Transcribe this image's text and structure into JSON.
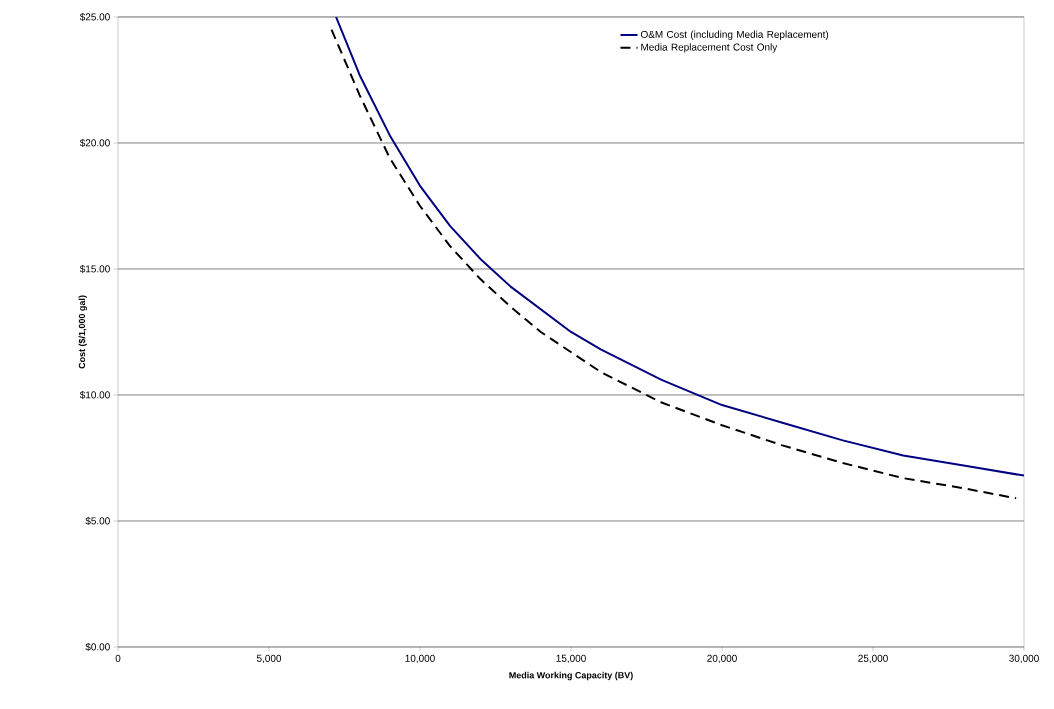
{
  "chart_data": {
    "type": "line",
    "xlabel": "Media Working Capacity (BV)",
    "ylabel": "Cost ($/1,000 gal)",
    "series": [
      {
        "name": "O&M Cost (including Media Replacement)",
        "color": "#000080",
        "line_style": "solid",
        "x": [
          7220,
          8000,
          9000,
          10000,
          11000,
          12000,
          13000,
          14000,
          15000,
          16000,
          18000,
          20000,
          22000,
          24000,
          26000,
          28000,
          30000
        ],
        "values": [
          25.0,
          22.7,
          20.3,
          18.3,
          16.7,
          15.4,
          14.3,
          13.4,
          12.5,
          11.8,
          10.6,
          9.6,
          8.9,
          8.2,
          7.6,
          7.2,
          6.8
        ]
      },
      {
        "name": "Media Replacement Cost Only",
        "color": "#000000",
        "line_style": "dashed",
        "x": [
          7070,
          8000,
          9000,
          10000,
          11000,
          12000,
          13000,
          14000,
          15000,
          16000,
          18000,
          20000,
          22000,
          24000,
          26000,
          28000,
          29740
        ],
        "values": [
          24.5,
          21.9,
          19.4,
          17.5,
          15.9,
          14.6,
          13.5,
          12.5,
          11.7,
          10.9,
          9.7,
          8.8,
          8.0,
          7.3,
          6.7,
          6.3,
          5.9
        ]
      }
    ],
    "xlim": [
      0,
      30000
    ],
    "xticks": [
      0,
      {
        "value": 5000,
        "label": "5,000"
      },
      {
        "value": 10000,
        "label": "10,000"
      },
      {
        "value": 15000,
        "label": "15,000"
      },
      {
        "value": 20000,
        "label": "20,000"
      },
      {
        "value": 25000,
        "label": "25,000"
      },
      {
        "value": 30000,
        "label": "30,000"
      }
    ],
    "ylim": [
      0,
      25
    ],
    "yticks": [
      {
        "value": 0,
        "label": "$0.00"
      },
      {
        "value": 5,
        "label": "$5.00"
      },
      {
        "value": 10,
        "label": "$10.00"
      },
      {
        "value": 15,
        "label": "$15.00"
      },
      {
        "value": 20,
        "label": "$20.00"
      },
      {
        "value": 25,
        "label": "$25.00"
      }
    ],
    "grid": "y",
    "legend": "top right"
  }
}
